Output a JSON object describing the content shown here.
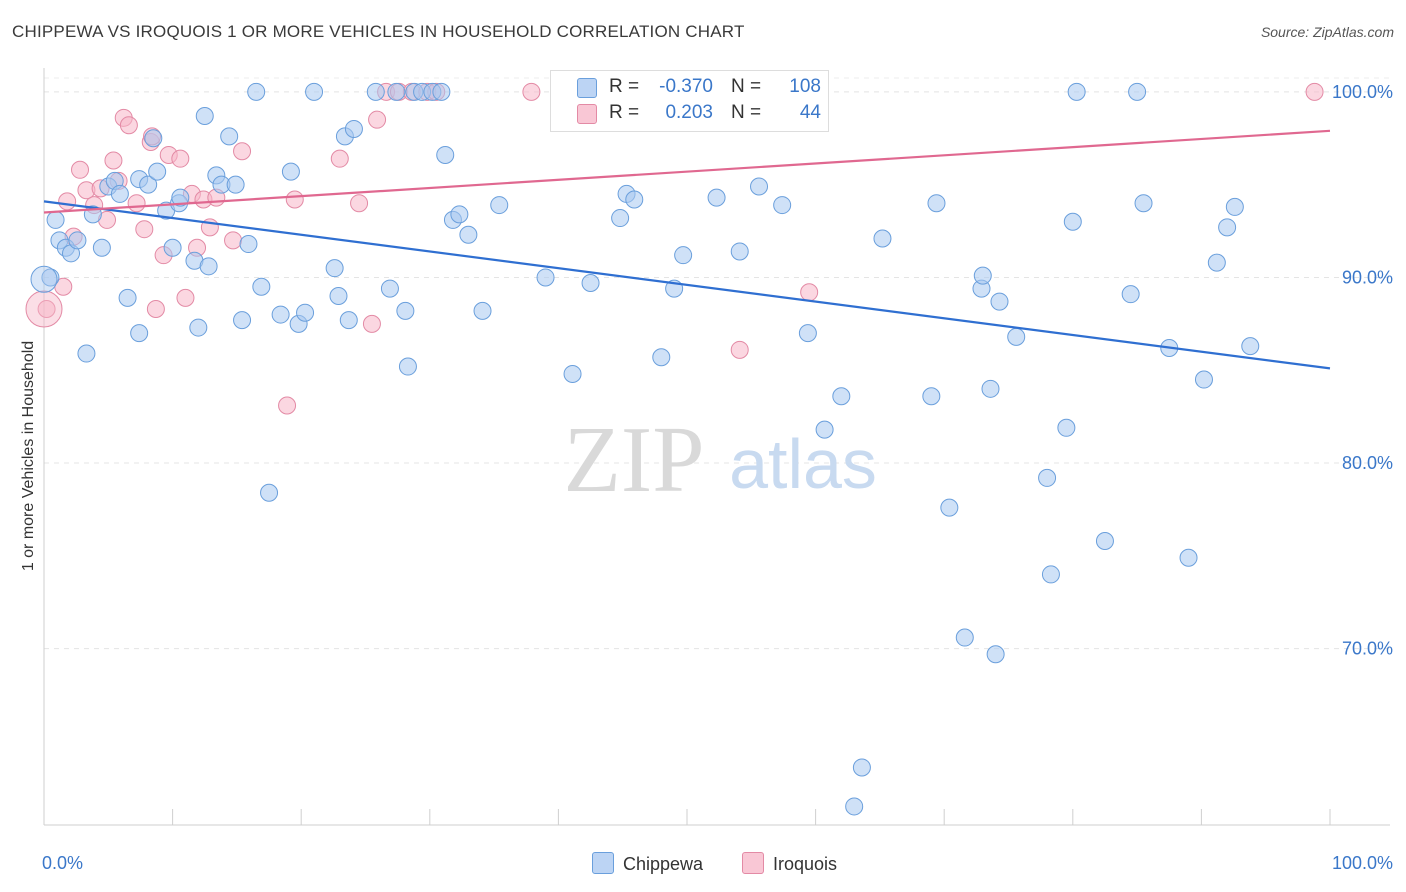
{
  "title": "CHIPPEWA VS IROQUOIS 1 OR MORE VEHICLES IN HOUSEHOLD CORRELATION CHART",
  "source": "Source: ZipAtlas.com",
  "watermark": {
    "zip": "ZIP",
    "atlas": "atlas"
  },
  "legend": {
    "rows": [
      {
        "r_label": "R =",
        "r_value": "-0.370",
        "n_label": "N =",
        "n_value": "108",
        "color": "#a8c8f0"
      },
      {
        "r_label": "R =",
        "r_value": "0.203",
        "n_label": "N =",
        "n_value": "44",
        "color": "#f7b6c8"
      }
    ]
  },
  "bottom_legend": [
    {
      "label": "Chippewa",
      "color": "#a8c8f0"
    },
    {
      "label": "Iroquois",
      "color": "#f7b6c8"
    }
  ],
  "chart_data": {
    "type": "scatter",
    "title": "CHIPPEWA VS IROQUOIS 1 OR MORE VEHICLES IN HOUSEHOLD CORRELATION CHART",
    "xlabel": "",
    "ylabel": "1 or more Vehicles in Household",
    "xlim": [
      0,
      100
    ],
    "ylim": [
      60.5,
      101.5
    ],
    "x_tick_labels": [
      "0.0%",
      "100.0%"
    ],
    "y_ticks": [
      100,
      90,
      80,
      70
    ],
    "y_tick_labels": [
      "100.0%",
      "90.0%",
      "80.0%",
      "70.0%"
    ],
    "grid": true,
    "legend_position": "top-center",
    "series": [
      {
        "name": "Chippewa",
        "color": "#a8c8f0",
        "stroke": "#6a9fdc",
        "trend_color": "#2f6fd1",
        "trend": {
          "x": [
            0,
            100
          ],
          "y": [
            94.1,
            85.1
          ]
        },
        "points": [
          [
            0.5,
            90.0
          ],
          [
            0.9,
            93.1
          ],
          [
            1.2,
            92.0
          ],
          [
            1.7,
            91.6
          ],
          [
            2.1,
            91.3
          ],
          [
            2.6,
            92.0
          ],
          [
            3.3,
            85.9
          ],
          [
            3.8,
            93.4
          ],
          [
            4.5,
            91.6
          ],
          [
            5.0,
            94.9
          ],
          [
            5.5,
            95.2
          ],
          [
            5.9,
            94.5
          ],
          [
            6.5,
            88.9
          ],
          [
            7.4,
            95.3
          ],
          [
            7.4,
            87.0
          ],
          [
            8.1,
            95.0
          ],
          [
            8.5,
            97.5
          ],
          [
            8.8,
            95.7
          ],
          [
            9.5,
            93.6
          ],
          [
            10.0,
            91.6
          ],
          [
            10.5,
            94.0
          ],
          [
            10.6,
            94.3
          ],
          [
            11.7,
            90.9
          ],
          [
            12.0,
            87.3
          ],
          [
            12.5,
            98.7
          ],
          [
            12.8,
            90.6
          ],
          [
            13.4,
            95.5
          ],
          [
            13.8,
            95.0
          ],
          [
            14.4,
            97.6
          ],
          [
            14.9,
            95.0
          ],
          [
            15.4,
            87.7
          ],
          [
            15.9,
            91.8
          ],
          [
            16.5,
            100.0
          ],
          [
            16.9,
            89.5
          ],
          [
            17.5,
            78.4
          ],
          [
            18.4,
            88.0
          ],
          [
            19.2,
            95.7
          ],
          [
            19.8,
            87.5
          ],
          [
            20.3,
            88.1
          ],
          [
            21.0,
            100.0
          ],
          [
            22.6,
            90.5
          ],
          [
            22.9,
            89.0
          ],
          [
            23.4,
            97.6
          ],
          [
            23.7,
            87.7
          ],
          [
            24.1,
            98.0
          ],
          [
            25.8,
            100.0
          ],
          [
            26.9,
            89.4
          ],
          [
            27.4,
            100.0
          ],
          [
            28.1,
            88.2
          ],
          [
            28.3,
            85.2
          ],
          [
            28.8,
            100.0
          ],
          [
            29.4,
            100.0
          ],
          [
            30.2,
            100.0
          ],
          [
            30.9,
            100.0
          ],
          [
            31.2,
            96.6
          ],
          [
            31.8,
            93.1
          ],
          [
            32.3,
            93.4
          ],
          [
            33.0,
            92.3
          ],
          [
            34.1,
            88.2
          ],
          [
            35.4,
            93.9
          ],
          [
            39.0,
            90.0
          ],
          [
            41.1,
            84.8
          ],
          [
            42.5,
            89.7
          ],
          [
            44.2,
            100.0
          ],
          [
            44.8,
            93.2
          ],
          [
            45.3,
            94.5
          ],
          [
            45.9,
            94.2
          ],
          [
            48.0,
            85.7
          ],
          [
            49.0,
            89.4
          ],
          [
            49.7,
            91.2
          ],
          [
            52.3,
            94.3
          ],
          [
            52.9,
            100.0
          ],
          [
            54.1,
            91.4
          ],
          [
            55.6,
            94.9
          ],
          [
            57.4,
            93.9
          ],
          [
            59.4,
            87.0
          ],
          [
            60.7,
            81.8
          ],
          [
            62.0,
            83.6
          ],
          [
            63.0,
            61.5
          ],
          [
            63.6,
            63.6
          ],
          [
            65.2,
            92.1
          ],
          [
            69.0,
            83.6
          ],
          [
            69.4,
            94.0
          ],
          [
            70.4,
            77.6
          ],
          [
            71.6,
            70.6
          ],
          [
            72.9,
            89.4
          ],
          [
            73.0,
            90.1
          ],
          [
            73.6,
            84.0
          ],
          [
            74.0,
            69.7
          ],
          [
            74.3,
            88.7
          ],
          [
            75.6,
            86.8
          ],
          [
            78.0,
            79.2
          ],
          [
            78.3,
            74.0
          ],
          [
            79.5,
            81.9
          ],
          [
            80.0,
            93.0
          ],
          [
            80.3,
            100.0
          ],
          [
            82.5,
            75.8
          ],
          [
            84.5,
            89.1
          ],
          [
            85.0,
            100.0
          ],
          [
            85.5,
            94.0
          ],
          [
            87.5,
            86.2
          ],
          [
            89.0,
            74.9
          ],
          [
            90.2,
            84.5
          ],
          [
            91.2,
            90.8
          ],
          [
            92.0,
            92.7
          ],
          [
            92.6,
            93.8
          ],
          [
            93.8,
            86.3
          ],
          [
            46.7,
            100.0
          ]
        ]
      },
      {
        "name": "Iroquois",
        "color": "#f7b6c8",
        "stroke": "#e38aa5",
        "trend_color": "#e06890",
        "trend": {
          "x": [
            0,
            100
          ],
          "y": [
            93.5,
            97.9
          ]
        },
        "points": [
          [
            0.2,
            88.3
          ],
          [
            1.8,
            94.1
          ],
          [
            2.3,
            92.2
          ],
          [
            2.8,
            95.8
          ],
          [
            3.3,
            94.7
          ],
          [
            3.9,
            93.9
          ],
          [
            4.4,
            94.8
          ],
          [
            4.9,
            93.1
          ],
          [
            5.4,
            96.3
          ],
          [
            5.8,
            95.2
          ],
          [
            6.2,
            98.6
          ],
          [
            6.6,
            98.2
          ],
          [
            7.2,
            94.0
          ],
          [
            7.8,
            92.6
          ],
          [
            8.3,
            97.3
          ],
          [
            8.7,
            88.3
          ],
          [
            9.3,
            91.2
          ],
          [
            9.7,
            96.6
          ],
          [
            10.6,
            96.4
          ],
          [
            11.0,
            88.9
          ],
          [
            11.5,
            94.5
          ],
          [
            11.9,
            91.6
          ],
          [
            12.4,
            94.2
          ],
          [
            12.9,
            92.7
          ],
          [
            13.4,
            94.3
          ],
          [
            14.7,
            92.0
          ],
          [
            15.4,
            96.8
          ],
          [
            18.9,
            83.1
          ],
          [
            19.5,
            94.2
          ],
          [
            23.0,
            96.4
          ],
          [
            24.5,
            94.0
          ],
          [
            25.5,
            87.5
          ],
          [
            25.9,
            98.5
          ],
          [
            26.6,
            100.0
          ],
          [
            27.6,
            100.0
          ],
          [
            28.6,
            100.0
          ],
          [
            29.8,
            100.0
          ],
          [
            30.5,
            100.0
          ],
          [
            37.9,
            100.0
          ],
          [
            59.5,
            89.2
          ],
          [
            98.8,
            100.0
          ],
          [
            54.1,
            86.1
          ],
          [
            1.5,
            89.5
          ],
          [
            8.4,
            97.6
          ]
        ]
      }
    ]
  }
}
